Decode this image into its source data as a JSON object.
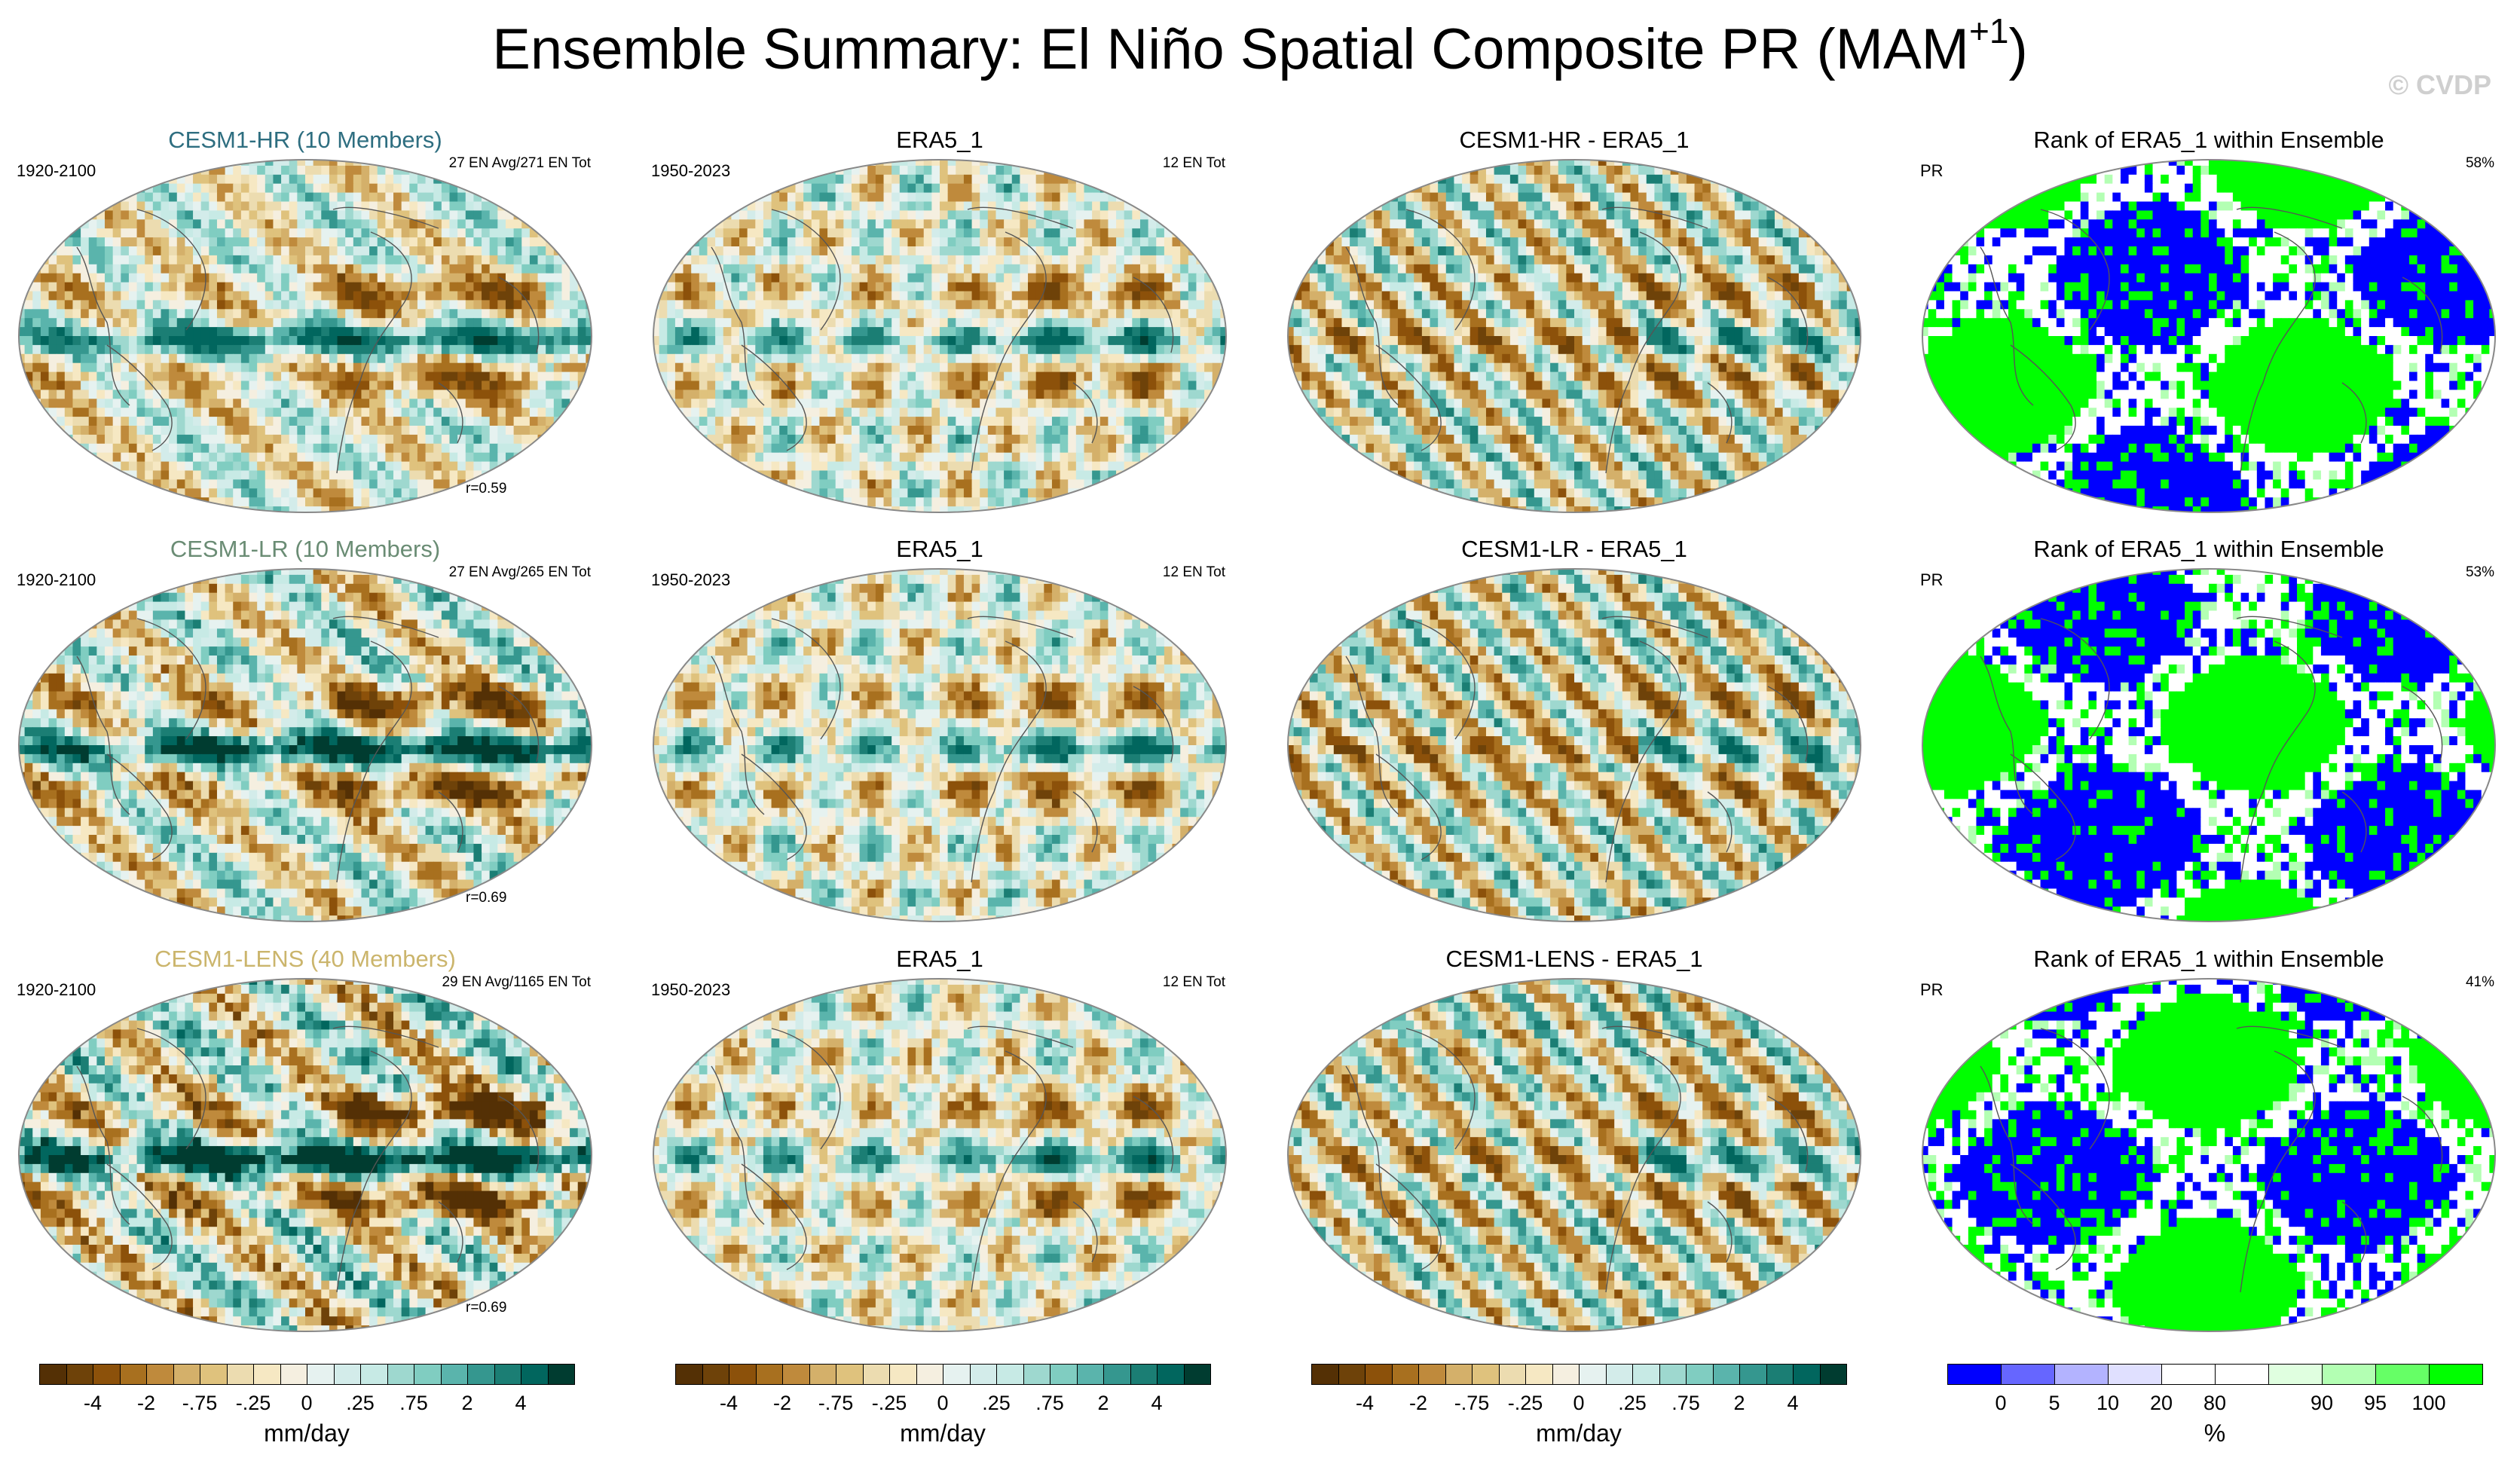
{
  "title": {
    "main": "Ensemble Summary: El Niño Spatial Composite PR (MAM",
    "sup": "+1",
    "close": ")"
  },
  "watermark": "© CVDP",
  "rows": [
    {
      "model": "CESM1-HR (10 Members)",
      "model_style": "hr",
      "years": "1920-2100",
      "ens_info": "27 EN Avg/271 EN Tot",
      "pattern_corr": "r=0.59",
      "obs": "ERA5_1",
      "obs_years": "1950-2023",
      "obs_info": "12 EN Tot",
      "diff": "CESM1-HR - ERA5_1",
      "rank_title": "Rank of ERA5_1 within Ensemble",
      "rank_var": "PR",
      "rank_pct": "58%"
    },
    {
      "model": "CESM1-LR (10 Members)",
      "model_style": "lr",
      "years": "1920-2100",
      "ens_info": "27 EN Avg/265 EN Tot",
      "pattern_corr": "r=0.69",
      "obs": "ERA5_1",
      "obs_years": "1950-2023",
      "obs_info": "12 EN Tot",
      "diff": "CESM1-LR - ERA5_1",
      "rank_title": "Rank of ERA5_1 within Ensemble",
      "rank_var": "PR",
      "rank_pct": "53%"
    },
    {
      "model": "CESM1-LENS (40 Members)",
      "model_style": "lens",
      "years": "1920-2100",
      "ens_info": "29 EN Avg/1165 EN Tot",
      "pattern_corr": "r=0.69",
      "obs": "ERA5_1",
      "obs_years": "1950-2023",
      "obs_info": "12 EN Tot",
      "diff": "CESM1-LENS - ERA5_1",
      "rank_title": "Rank of ERA5_1 within Ensemble",
      "rank_var": "PR",
      "rank_pct": "41%"
    }
  ],
  "colorbars": {
    "precip": {
      "units": "mm/day",
      "tick_labels": [
        "-4",
        "-2",
        "-.75",
        "-.25",
        "0",
        ".25",
        ".75",
        "2",
        "4"
      ],
      "colors": [
        "#543005",
        "#6e4209",
        "#8c510a",
        "#a8701f",
        "#bf8a3c",
        "#d4b06a",
        "#dfc27d",
        "#ecdcb0",
        "#f6e8c3",
        "#f5efe0",
        "#e6f2f0",
        "#d3ecea",
        "#c7eae5",
        "#9ed8cf",
        "#80cdc1",
        "#5ab4ac",
        "#35978f",
        "#1b7e74",
        "#01665e",
        "#003c30"
      ]
    },
    "rank": {
      "units": "%",
      "tick_labels": [
        "0",
        "5",
        "10",
        "20",
        "80",
        "90",
        "95",
        "100"
      ],
      "colors": [
        "#0000ff",
        "#6666ff",
        "#b3b3ff",
        "#e0e0ff",
        "#ffffff",
        "#ffffff",
        "#e0ffe0",
        "#b3ffb3",
        "#66ff66",
        "#00ff00"
      ]
    }
  },
  "chart_data": [
    {
      "type": "heatmap",
      "title": "CESM1-HR (10 Members)",
      "projection": "Robinson",
      "variable": "PR",
      "season": "MAM+1",
      "units": "mm/day",
      "period": "1920-2100",
      "legend": "bottom",
      "pattern": "model"
    },
    {
      "type": "heatmap",
      "title": "ERA5_1",
      "projection": "Robinson",
      "variable": "PR",
      "units": "mm/day",
      "period": "1950-2023",
      "legend": "bottom",
      "pattern": "obs"
    },
    {
      "type": "heatmap",
      "title": "CESM1-HR - ERA5_1",
      "projection": "Robinson",
      "variable": "PR",
      "units": "mm/day",
      "legend": "bottom",
      "pattern": "diff"
    },
    {
      "type": "heatmap",
      "title": "Rank of ERA5_1 within Ensemble",
      "projection": "Robinson",
      "variable": "PR",
      "units": "%",
      "legend": "bottom",
      "pattern": "rank"
    }
  ]
}
